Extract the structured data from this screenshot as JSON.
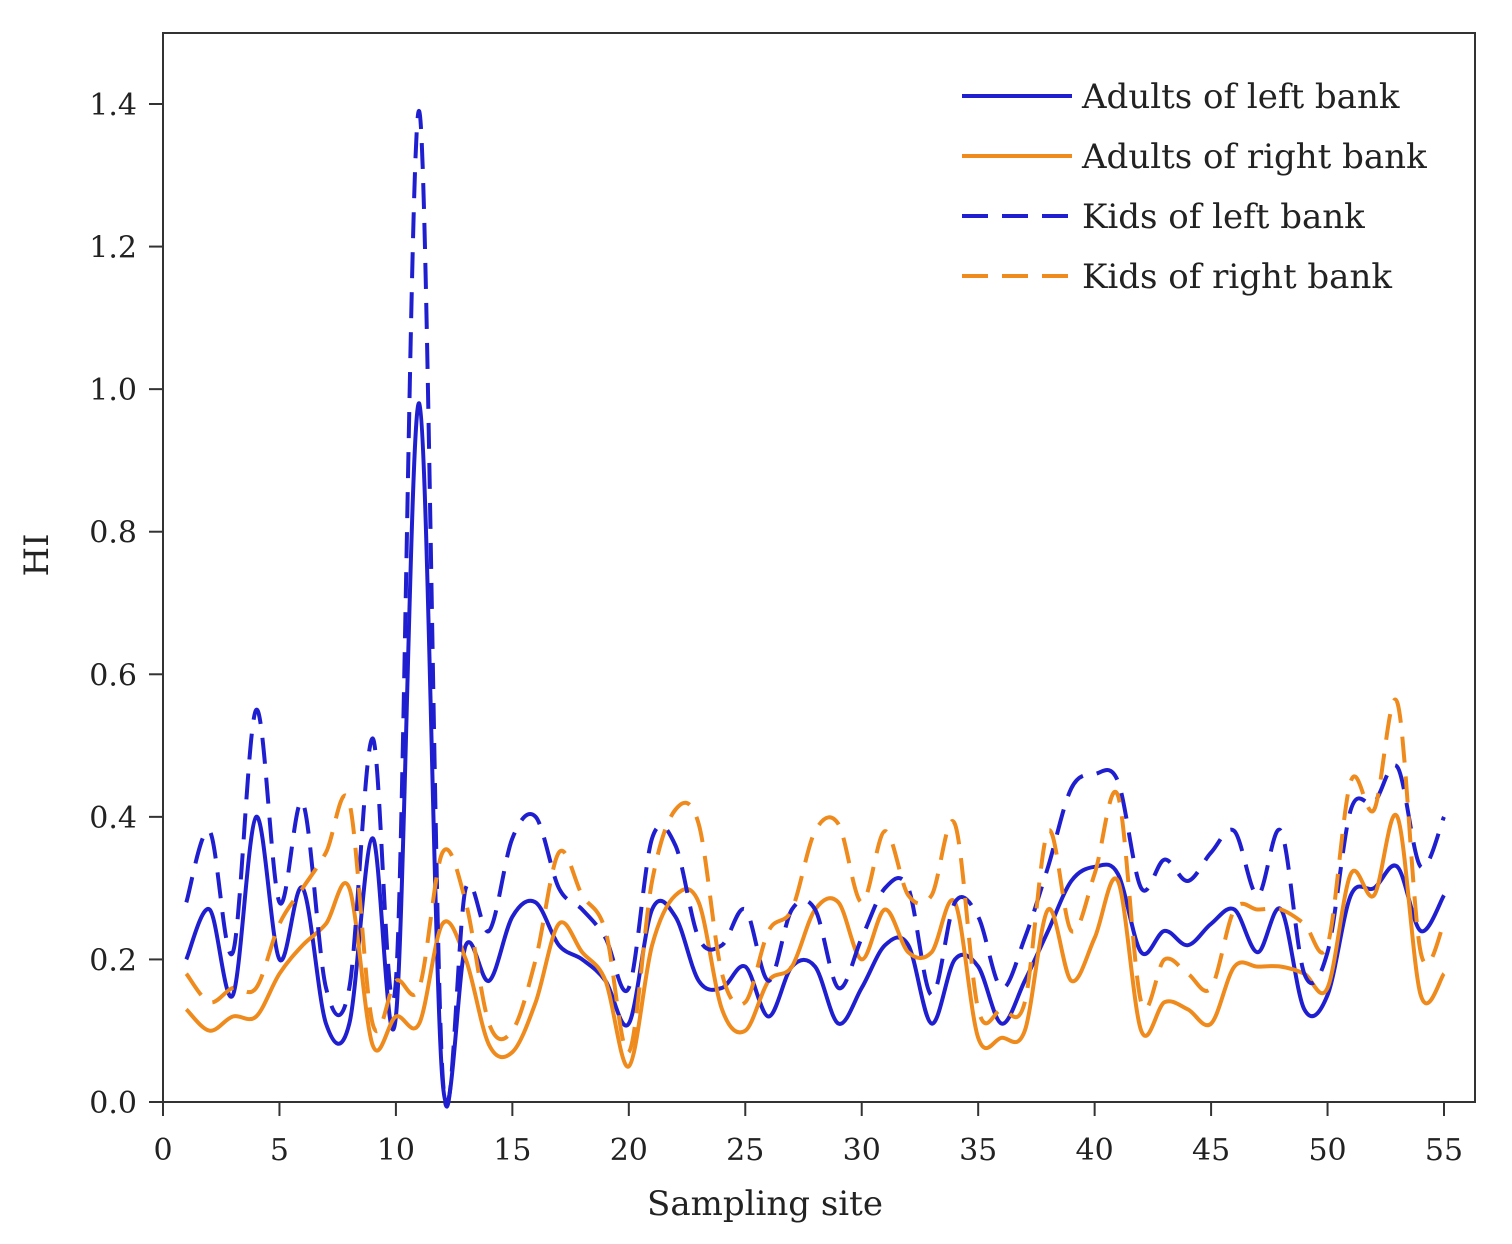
{
  "chart_data": {
    "type": "line",
    "title": "",
    "xlabel": "Sampling site",
    "ylabel": "HI",
    "xlim": [
      0,
      55
    ],
    "ylim": [
      0,
      1.5
    ],
    "xticks": [
      0,
      5,
      10,
      15,
      20,
      25,
      30,
      35,
      40,
      45,
      50,
      55
    ],
    "yticks": [
      0.0,
      0.2,
      0.4,
      0.6,
      0.8,
      1.0,
      1.2,
      1.4
    ],
    "xtick_labels": [
      "0",
      "5",
      "10",
      "15",
      "20",
      "25",
      "30",
      "35",
      "40",
      "45",
      "50",
      "55"
    ],
    "ytick_labels": [
      "0.0",
      "0.2",
      "0.4",
      "0.6",
      "0.8",
      "1.0",
      "1.2",
      "1.4"
    ],
    "grid": false,
    "legend_position": "top-right",
    "x": [
      1,
      2,
      3,
      4,
      5,
      6,
      7,
      8,
      9,
      10,
      11,
      12,
      13,
      14,
      15,
      16,
      17,
      18,
      19,
      20,
      21,
      22,
      23,
      24,
      25,
      26,
      27,
      28,
      29,
      30,
      31,
      32,
      33,
      34,
      35,
      36,
      37,
      38,
      39,
      40,
      41,
      42,
      43,
      44,
      45,
      46,
      47,
      48,
      49,
      50,
      51,
      52,
      53,
      54,
      55
    ],
    "series": [
      {
        "name": "Adults of left bank",
        "color": "#1f1fd0",
        "style": "solid",
        "values": [
          0.2,
          0.27,
          0.15,
          0.4,
          0.2,
          0.3,
          0.11,
          0.11,
          0.37,
          0.12,
          0.98,
          0.03,
          0.22,
          0.17,
          0.26,
          0.28,
          0.22,
          0.2,
          0.17,
          0.11,
          0.27,
          0.26,
          0.17,
          0.16,
          0.19,
          0.12,
          0.19,
          0.19,
          0.11,
          0.16,
          0.22,
          0.22,
          0.11,
          0.2,
          0.19,
          0.11,
          0.17,
          0.24,
          0.31,
          0.33,
          0.32,
          0.21,
          0.24,
          0.22,
          0.25,
          0.27,
          0.21,
          0.27,
          0.13,
          0.15,
          0.29,
          0.3,
          0.33,
          0.24,
          0.29
        ]
      },
      {
        "name": "Adults of right bank",
        "color": "#ef8a1c",
        "style": "solid",
        "values": [
          0.13,
          0.1,
          0.12,
          0.12,
          0.18,
          0.22,
          0.25,
          0.3,
          0.08,
          0.12,
          0.11,
          0.25,
          0.2,
          0.08,
          0.07,
          0.14,
          0.25,
          0.21,
          0.17,
          0.05,
          0.22,
          0.29,
          0.28,
          0.13,
          0.1,
          0.17,
          0.19,
          0.27,
          0.28,
          0.2,
          0.27,
          0.21,
          0.21,
          0.28,
          0.09,
          0.09,
          0.1,
          0.27,
          0.17,
          0.23,
          0.31,
          0.1,
          0.14,
          0.13,
          0.11,
          0.19,
          0.19,
          0.19,
          0.18,
          0.16,
          0.32,
          0.29,
          0.4,
          0.15,
          0.18
        ]
      },
      {
        "name": "Kids of left bank",
        "color": "#1f1fd0",
        "style": "dashed",
        "values": [
          0.28,
          0.38,
          0.21,
          0.55,
          0.28,
          0.42,
          0.16,
          0.16,
          0.51,
          0.17,
          1.39,
          0.04,
          0.3,
          0.24,
          0.37,
          0.4,
          0.3,
          0.27,
          0.23,
          0.16,
          0.37,
          0.36,
          0.23,
          0.22,
          0.27,
          0.17,
          0.27,
          0.27,
          0.16,
          0.23,
          0.3,
          0.3,
          0.15,
          0.28,
          0.26,
          0.16,
          0.23,
          0.33,
          0.44,
          0.46,
          0.45,
          0.3,
          0.34,
          0.31,
          0.35,
          0.38,
          0.29,
          0.38,
          0.18,
          0.21,
          0.41,
          0.42,
          0.47,
          0.33,
          0.4
        ]
      },
      {
        "name": "Kids of right bank",
        "color": "#ef8a1c",
        "style": "dashed",
        "values": [
          0.18,
          0.14,
          0.16,
          0.16,
          0.25,
          0.3,
          0.35,
          0.42,
          0.11,
          0.17,
          0.16,
          0.35,
          0.28,
          0.11,
          0.1,
          0.2,
          0.35,
          0.29,
          0.24,
          0.07,
          0.31,
          0.41,
          0.39,
          0.18,
          0.14,
          0.24,
          0.27,
          0.38,
          0.39,
          0.28,
          0.38,
          0.29,
          0.29,
          0.39,
          0.13,
          0.13,
          0.14,
          0.38,
          0.24,
          0.32,
          0.43,
          0.14,
          0.2,
          0.18,
          0.16,
          0.27,
          0.27,
          0.27,
          0.25,
          0.22,
          0.45,
          0.41,
          0.56,
          0.21,
          0.25
        ]
      }
    ]
  }
}
